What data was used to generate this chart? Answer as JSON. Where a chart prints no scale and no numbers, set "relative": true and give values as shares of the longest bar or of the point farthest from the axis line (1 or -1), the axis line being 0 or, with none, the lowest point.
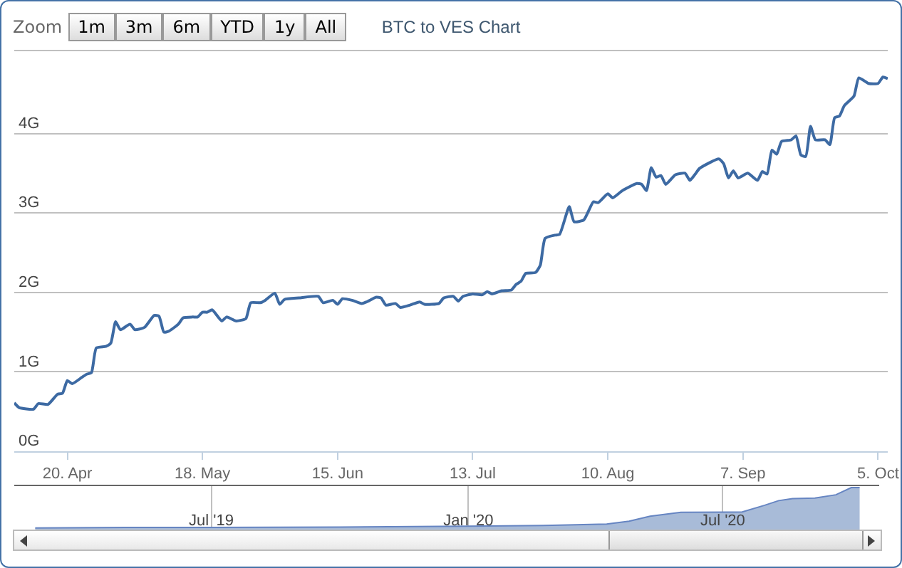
{
  "chart_data": [
    {
      "type": "line",
      "title": "BTC to VES Chart",
      "annotations": [
        "Zoom",
        "1m",
        "3m",
        "6m",
        "YTD",
        "1y",
        "All"
      ],
      "x": [
        "2020-04-09",
        "2020-04-10",
        "2020-04-13",
        "2020-04-14",
        "2020-04-16",
        "2020-04-18",
        "2020-04-19",
        "2020-04-20",
        "2020-04-21",
        "2020-04-23",
        "2020-04-24",
        "2020-04-25",
        "2020-04-26",
        "2020-04-28",
        "2020-04-29",
        "2020-04-30",
        "2020-05-01",
        "2020-05-03",
        "2020-05-04",
        "2020-05-06",
        "2020-05-08",
        "2020-05-09",
        "2020-05-10",
        "2020-05-11",
        "2020-05-13",
        "2020-05-14",
        "2020-05-16",
        "2020-05-17",
        "2020-05-18",
        "2020-05-19",
        "2020-05-20",
        "2020-05-22",
        "2020-05-23",
        "2020-05-25",
        "2020-05-27",
        "2020-05-28",
        "2020-05-30",
        "2020-05-31",
        "2020-06-02",
        "2020-06-03",
        "2020-06-04",
        "2020-06-07",
        "2020-06-11",
        "2020-06-12",
        "2020-06-14",
        "2020-06-15",
        "2020-06-16",
        "2020-06-18",
        "2020-06-20",
        "2020-06-21",
        "2020-06-23",
        "2020-06-24",
        "2020-06-25",
        "2020-06-27",
        "2020-06-28",
        "2020-06-30",
        "2020-07-02",
        "2020-07-03",
        "2020-07-06",
        "2020-07-07",
        "2020-07-09",
        "2020-07-10",
        "2020-07-11",
        "2020-07-13",
        "2020-07-15",
        "2020-07-16",
        "2020-07-17",
        "2020-07-19",
        "2020-07-21",
        "2020-07-22",
        "2020-07-23",
        "2020-07-24",
        "2020-07-26",
        "2020-07-27",
        "2020-07-28",
        "2020-07-30",
        "2020-07-31",
        "2020-08-02",
        "2020-08-03",
        "2020-08-05",
        "2020-08-07",
        "2020-08-08",
        "2020-08-10",
        "2020-08-11",
        "2020-08-13",
        "2020-08-16",
        "2020-08-17",
        "2020-08-18",
        "2020-08-19",
        "2020-08-20",
        "2020-08-21",
        "2020-08-22",
        "2020-08-24",
        "2020-08-26",
        "2020-08-27",
        "2020-08-28",
        "2020-08-29",
        "2020-09-02",
        "2020-09-03",
        "2020-09-04",
        "2020-09-05",
        "2020-09-06",
        "2020-09-08",
        "2020-09-10",
        "2020-09-11",
        "2020-09-12",
        "2020-09-13",
        "2020-09-14",
        "2020-09-15",
        "2020-09-17",
        "2020-09-18",
        "2020-09-19",
        "2020-09-20",
        "2020-09-21",
        "2020-09-22",
        "2020-09-24",
        "2020-09-25",
        "2020-09-26",
        "2020-09-27",
        "2020-09-28",
        "2020-09-30",
        "2020-10-01",
        "2020-10-03",
        "2020-10-05",
        "2020-10-06",
        "2020-10-07"
      ],
      "values": [
        0.61,
        0.55,
        0.53,
        0.6,
        0.59,
        0.72,
        0.73,
        0.89,
        0.85,
        0.93,
        0.97,
        0.99,
        1.3,
        1.32,
        1.36,
        1.63,
        1.53,
        1.6,
        1.53,
        1.56,
        1.71,
        1.7,
        1.5,
        1.51,
        1.6,
        1.68,
        1.69,
        1.69,
        1.75,
        1.75,
        1.78,
        1.64,
        1.69,
        1.64,
        1.67,
        1.87,
        1.87,
        1.9,
        1.99,
        1.85,
        1.91,
        1.93,
        1.95,
        1.87,
        1.9,
        1.85,
        1.92,
        1.9,
        1.86,
        1.88,
        1.94,
        1.93,
        1.84,
        1.86,
        1.81,
        1.84,
        1.88,
        1.85,
        1.86,
        1.93,
        1.95,
        1.89,
        1.95,
        1.98,
        1.97,
        2.01,
        1.98,
        2.02,
        2.03,
        2.1,
        2.14,
        2.24,
        2.25,
        2.34,
        2.68,
        2.72,
        2.73,
        3.08,
        2.89,
        2.91,
        3.14,
        3.13,
        3.24,
        3.19,
        3.28,
        3.37,
        3.36,
        3.28,
        3.57,
        3.45,
        3.47,
        3.36,
        3.48,
        3.5,
        3.41,
        3.48,
        3.56,
        3.68,
        3.62,
        3.44,
        3.53,
        3.44,
        3.5,
        3.41,
        3.52,
        3.49,
        3.79,
        3.74,
        3.9,
        3.92,
        3.97,
        3.73,
        3.71,
        4.09,
        3.92,
        3.92,
        3.86,
        4.2,
        4.22,
        4.35,
        4.47,
        4.7,
        4.63,
        4.63,
        4.71,
        4.69
      ],
      "color": "#3d6aa3",
      "xlim": [
        "2020-04-09",
        "2020-10-07"
      ],
      "ylim": [
        0,
        5.68
      ],
      "yticks": [
        {
          "value": 0,
          "label": "0G"
        },
        {
          "value": 1,
          "label": "1G"
        },
        {
          "value": 2,
          "label": "2G"
        },
        {
          "value": 3,
          "label": "3G"
        },
        {
          "value": 4,
          "label": "4G"
        }
      ],
      "xticks": [
        {
          "value": "2020-04-20",
          "label": "20. Apr"
        },
        {
          "value": "2020-05-18",
          "label": "18. May"
        },
        {
          "value": "2020-06-15",
          "label": "15. Jun"
        },
        {
          "value": "2020-07-13",
          "label": "13. Jul"
        },
        {
          "value": "2020-08-10",
          "label": "10. Aug"
        },
        {
          "value": "2020-09-07",
          "label": "7. Sep"
        },
        {
          "value": "2020-10-05",
          "label": "5. Oct"
        }
      ],
      "grid": "y"
    },
    {
      "type": "area",
      "relative": true,
      "x": [
        "2019-02-25",
        "2019-05-01",
        "2019-07-01",
        "2019-10-01",
        "2020-01-01",
        "2020-03-01",
        "2020-04-09",
        "2020-04-25",
        "2020-05-10",
        "2020-06-01",
        "2020-07-15",
        "2020-07-31",
        "2020-08-10",
        "2020-08-20",
        "2020-09-05",
        "2020-09-20",
        "2020-10-01",
        "2020-10-07"
      ],
      "values": [
        0.04,
        0.05,
        0.05,
        0.06,
        0.08,
        0.1,
        0.13,
        0.2,
        0.32,
        0.41,
        0.42,
        0.58,
        0.69,
        0.74,
        0.75,
        0.83,
        1.0,
        1.0
      ],
      "color": "#a8bbd8",
      "xlim": [
        "2019-02-10",
        "2020-10-21"
      ],
      "xticks": [
        {
          "value": "2019-07-01",
          "label": "Jul '19"
        },
        {
          "value": "2020-01-01",
          "label": "Jan '20"
        },
        {
          "value": "2020-07-01",
          "label": "Jul '20"
        }
      ],
      "grid": "x",
      "tick_labels": "x"
    }
  ]
}
